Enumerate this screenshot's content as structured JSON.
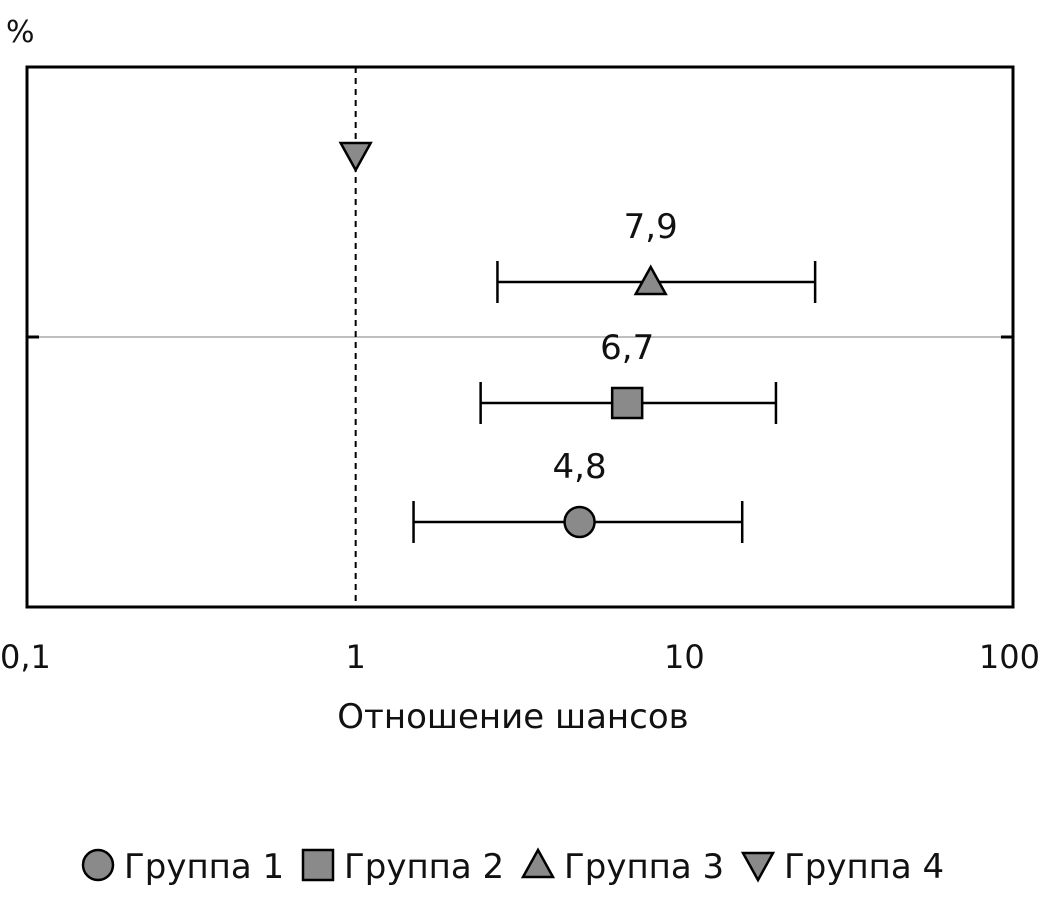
{
  "chart_data": {
    "type": "scatter",
    "ylabel": "%",
    "xlabel": "Отношение шансов",
    "xscale": "log",
    "xlim": [
      0.1,
      100
    ],
    "xticks": [
      0.1,
      1,
      10,
      100
    ],
    "xtick_labels": [
      "0,1",
      "1",
      "10",
      "100"
    ],
    "reference_line": {
      "x": 1,
      "style": "dashed"
    },
    "marker_color": "#8a8a8a",
    "legend_placement": "bottom",
    "series": [
      {
        "name": "Группа 1",
        "marker": "circle",
        "or": 4.8,
        "ci_low": 1.5,
        "ci_high": 15,
        "label": "4,8"
      },
      {
        "name": "Группа 2",
        "marker": "square",
        "or": 6.7,
        "ci_low": 2.4,
        "ci_high": 19,
        "label": "6,7"
      },
      {
        "name": "Группа 3",
        "marker": "triangle-up",
        "or": 7.9,
        "ci_low": 2.7,
        "ci_high": 25,
        "label": "7,9"
      },
      {
        "name": "Группа 4",
        "marker": "triangle-down",
        "or": 1.0,
        "ci_low": null,
        "ci_high": null,
        "label": ""
      }
    ]
  }
}
